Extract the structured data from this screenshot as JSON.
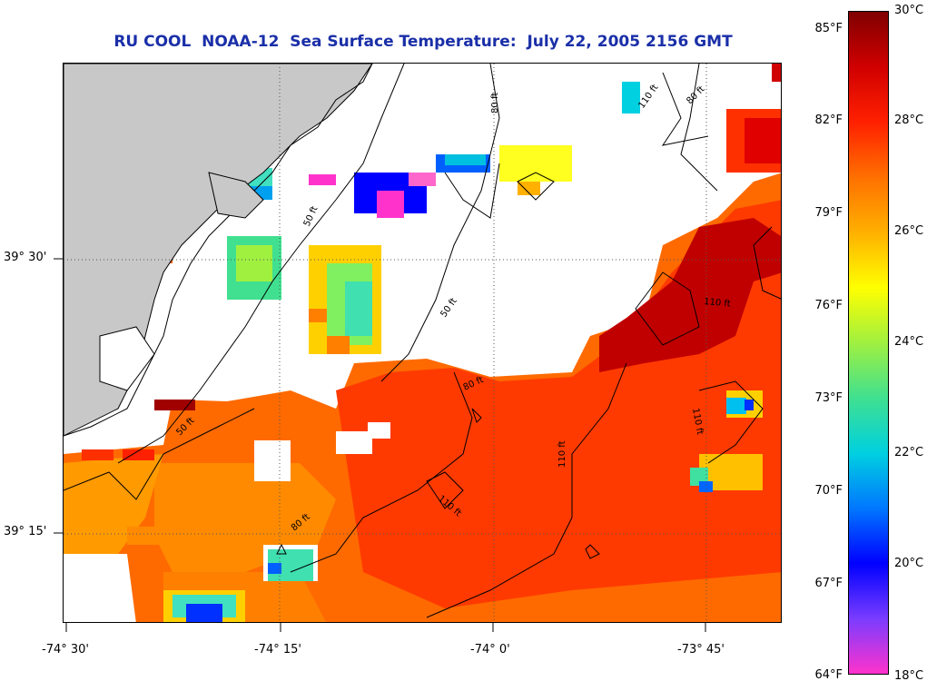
{
  "title": "RU COOL  NOAA-12  Sea Surface Temperature:  July 22, 2005 2156 GMT",
  "map": {
    "lat_labels": [
      "39° 30'",
      "39° 15'"
    ],
    "lon_labels": [
      "-74° 30'",
      "-74° 15'",
      "-74° 0'",
      "-73° 45'"
    ],
    "contour_labels": [
      "50 ft",
      "50 ft",
      "50 ft",
      "80 ft",
      "80 ft",
      "80 ft",
      "80 ft",
      "110 ft",
      "110 ft",
      "110 ft",
      "110 ft",
      "110 ft"
    ],
    "land_color": "#c8c8c8",
    "no_data_color": "#ffffff"
  },
  "colorbar": {
    "fahrenheit_labels": [
      "85°F",
      "82°F",
      "79°F",
      "76°F",
      "73°F",
      "70°F",
      "67°F",
      "64°F"
    ],
    "celsius_labels": [
      "30°C",
      "28°C",
      "26°C",
      "24°C",
      "22°C",
      "20°C",
      "18°C"
    ],
    "range_celsius": [
      18,
      30
    ],
    "colors": [
      "#ff33cc",
      "#7a3cff",
      "#0000ff",
      "#0077ff",
      "#00d0e0",
      "#40e090",
      "#a0f040",
      "#ffff00",
      "#ffb000",
      "#ff7000",
      "#ff2000",
      "#d00000",
      "#800000"
    ]
  }
}
